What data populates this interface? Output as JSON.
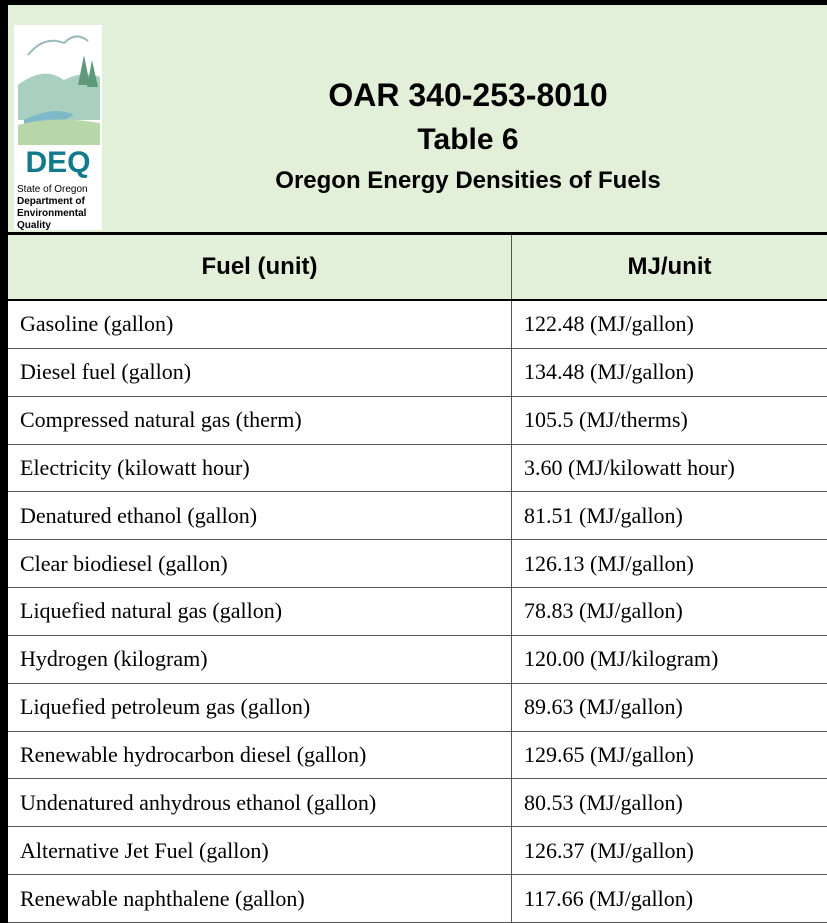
{
  "header": {
    "logo": {
      "acronym": "DEQ",
      "lines": [
        "State of Oregon",
        "Department of",
        "Environmental",
        "Quality"
      ]
    },
    "title": "OAR 340-253-8010",
    "subtitle": "Table 6",
    "caption": "Oregon Energy Densities of Fuels"
  },
  "table": {
    "columns": [
      "Fuel (unit)",
      "MJ/unit"
    ],
    "rows": [
      [
        "Gasoline (gallon)",
        "122.48 (MJ/gallon)"
      ],
      [
        "Diesel fuel (gallon)",
        "134.48 (MJ/gallon)"
      ],
      [
        "Compressed natural gas (therm)",
        "105.5 (MJ/therms)"
      ],
      [
        "Electricity (kilowatt hour)",
        "3.60 (MJ/kilowatt hour)"
      ],
      [
        "Denatured ethanol (gallon)",
        "81.51 (MJ/gallon)"
      ],
      [
        "Clear biodiesel (gallon)",
        "126.13 (MJ/gallon)"
      ],
      [
        "Liquefied natural gas (gallon)",
        "78.83 (MJ/gallon)"
      ],
      [
        "Hydrogen (kilogram)",
        "120.00 (MJ/kilogram)"
      ],
      [
        "Liquefied petroleum gas (gallon)",
        "89.63 (MJ/gallon)"
      ],
      [
        "Renewable hydrocarbon diesel (gallon)",
        "129.65 (MJ/gallon)"
      ],
      [
        "Undenatured anhydrous ethanol (gallon)",
        "80.53 (MJ/gallon)"
      ],
      [
        "Alternative Jet Fuel (gallon)",
        "126.37 (MJ/gallon)"
      ],
      [
        "Renewable naphthalene (gallon)",
        "117.66 (MJ/gallon)"
      ]
    ]
  }
}
